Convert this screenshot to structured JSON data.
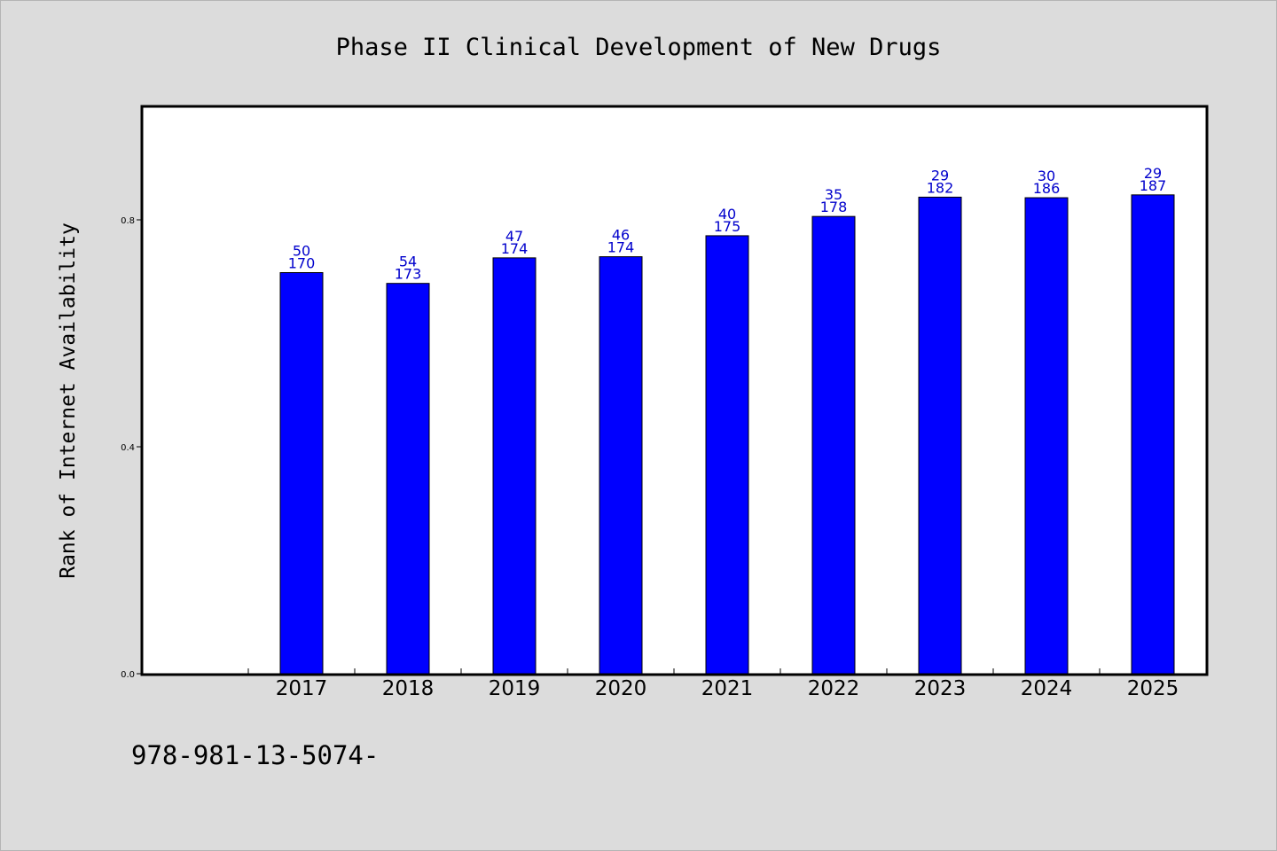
{
  "chart_data": {
    "type": "bar",
    "title": "Phase II Clinical Development of New Drugs",
    "xlabel": "",
    "ylabel": "Rank of Internet Availability",
    "categories": [
      "2017",
      "2018",
      "2019",
      "2020",
      "2021",
      "2022",
      "2023",
      "2024",
      "2025"
    ],
    "values": [
      0.707,
      0.688,
      0.733,
      0.735,
      0.772,
      0.806,
      0.84,
      0.839,
      0.844
    ],
    "data_labels_top": [
      "50",
      "54",
      "47",
      "46",
      "40",
      "35",
      "29",
      "30",
      "29"
    ],
    "data_labels_bottom": [
      "170",
      "173",
      "174",
      "174",
      "175",
      "178",
      "182",
      "186",
      "187"
    ],
    "y_ticks": [
      "0.0",
      "0.4",
      "0.8"
    ],
    "ylim": [
      0,
      1.0
    ],
    "grid": false,
    "bar_color": "#0000ff",
    "label_color": "#0000cc"
  },
  "footer": {
    "code": "978-981-13-5074-"
  }
}
